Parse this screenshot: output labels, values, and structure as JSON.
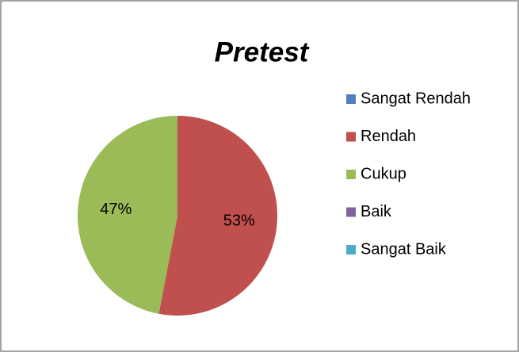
{
  "chart_data": {
    "type": "pie",
    "title": "Pretest",
    "categories": [
      "Sangat Rendah",
      "Rendah",
      "Cukup",
      "Baik",
      "Sangat Baik"
    ],
    "values": [
      0,
      53,
      47,
      0,
      0
    ],
    "value_labels": [
      null,
      "53%",
      "47%",
      null,
      null
    ],
    "colors": [
      "#4f81bd",
      "#c0504d",
      "#9bbb59",
      "#8064a2",
      "#4bacc6"
    ],
    "legend": "right"
  }
}
